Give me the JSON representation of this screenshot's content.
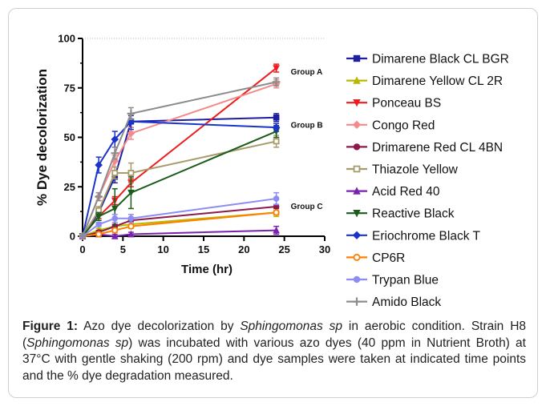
{
  "chart_data": {
    "type": "line",
    "xlabel": "Time (hr)",
    "ylabel": "% Dye decolorization",
    "xlim": [
      0,
      30
    ],
    "ylim": [
      0,
      100
    ],
    "xticks": [
      "0",
      "5",
      "10",
      "15",
      "20",
      "25",
      "30"
    ],
    "yticks": [
      "0",
      "25",
      "50",
      "75",
      "100"
    ],
    "grid": false,
    "legend_position": "right",
    "annotations": [
      {
        "text": "Group A",
        "x": 24,
        "y": 83
      },
      {
        "text": "Group B",
        "x": 24,
        "y": 56
      },
      {
        "text": "Group C",
        "x": 24,
        "y": 15
      }
    ],
    "series": [
      {
        "name": "Dimarene Black CL BGR",
        "color": "#1f1fa0",
        "marker": "square-filled",
        "x": [
          0,
          2,
          4,
          6,
          24
        ],
        "y": [
          0,
          12,
          30,
          58,
          60
        ],
        "err": [
          0,
          1,
          3,
          3,
          2
        ]
      },
      {
        "name": "Dimarene Yellow CL 2R",
        "color": "#b8b800",
        "marker": "triangle-filled",
        "x": [
          0,
          2,
          4,
          6,
          24
        ],
        "y": [
          0,
          3,
          5,
          6,
          12
        ],
        "err": [
          0,
          1,
          1,
          1,
          2
        ]
      },
      {
        "name": "Ponceau BS",
        "color": "#ee1c1c",
        "marker": "triangle-down-filled",
        "x": [
          0,
          2,
          4,
          6,
          24
        ],
        "y": [
          0,
          10,
          18,
          27,
          85
        ],
        "err": [
          0,
          1,
          2,
          2,
          2
        ]
      },
      {
        "name": "Congo Red",
        "color": "#f58a8a",
        "marker": "diamond-filled",
        "x": [
          0,
          2,
          4,
          6,
          24
        ],
        "y": [
          0,
          20,
          38,
          52,
          77
        ],
        "err": [
          0,
          2,
          3,
          3,
          2
        ]
      },
      {
        "name": "Drimarene Red CL 4BN",
        "color": "#8b1a4a",
        "marker": "circle-filled",
        "x": [
          0,
          2,
          4,
          6,
          24
        ],
        "y": [
          0,
          2,
          5,
          8,
          15
        ],
        "err": [
          0,
          1,
          1,
          1,
          1
        ]
      },
      {
        "name": "Thiazole Yellow",
        "color": "#a89b6a",
        "marker": "square-open",
        "x": [
          0,
          2,
          4,
          6,
          24
        ],
        "y": [
          0,
          13,
          32,
          32,
          48
        ],
        "err": [
          0,
          2,
          3,
          5,
          3
        ]
      },
      {
        "name": "Acid Red 40",
        "color": "#7a22b0",
        "marker": "triangle-filled",
        "x": [
          0,
          2,
          4,
          6,
          24
        ],
        "y": [
          0,
          1,
          0,
          1,
          3
        ],
        "err": [
          0,
          1,
          1,
          1,
          2
        ]
      },
      {
        "name": "Reactive Black",
        "color": "#1a5c1a",
        "marker": "triangle-down-filled",
        "x": [
          0,
          2,
          4,
          6,
          24
        ],
        "y": [
          0,
          10,
          14,
          22,
          53
        ],
        "err": [
          0,
          2,
          10,
          8,
          3
        ]
      },
      {
        "name": "Eriochrome Black T",
        "color": "#1a33cc",
        "marker": "diamond-filled",
        "x": [
          0,
          2,
          4,
          6,
          24
        ],
        "y": [
          0,
          36,
          49,
          58,
          55
        ],
        "err": [
          0,
          4,
          4,
          4,
          2
        ]
      },
      {
        "name": "CP6R",
        "color": "#ff7f00",
        "marker": "circle-open",
        "x": [
          0,
          2,
          4,
          6,
          24
        ],
        "y": [
          0,
          1,
          3,
          5,
          12
        ],
        "err": [
          0,
          1,
          1,
          1,
          1
        ]
      },
      {
        "name": "Trypan Blue",
        "color": "#8c8cf2",
        "marker": "circle-filled",
        "x": [
          0,
          2,
          4,
          6,
          24
        ],
        "y": [
          0,
          6,
          9,
          9,
          19
        ],
        "err": [
          0,
          1,
          2,
          2,
          3
        ]
      },
      {
        "name": "Amido Black",
        "color": "#8c8c8c",
        "marker": "plus",
        "x": [
          0,
          2,
          4,
          6,
          24
        ],
        "y": [
          0,
          20,
          42,
          62,
          78
        ],
        "err": [
          0,
          2,
          3,
          3,
          2
        ]
      }
    ]
  },
  "caption": {
    "label": "Figure 1:",
    "part1": " Azo dye decolorization by ",
    "organism1": "Sphingomonas sp",
    "part2": " in aerobic condition. Strain H8 (",
    "organism2": "Sphingomonas sp",
    "part3": ") was incubated with various azo dyes (40 ppm in Nutrient Broth) at 37°C with gentle shaking (200 rpm) and dye samples were taken at indicated time points and the % dye degradation measured."
  }
}
